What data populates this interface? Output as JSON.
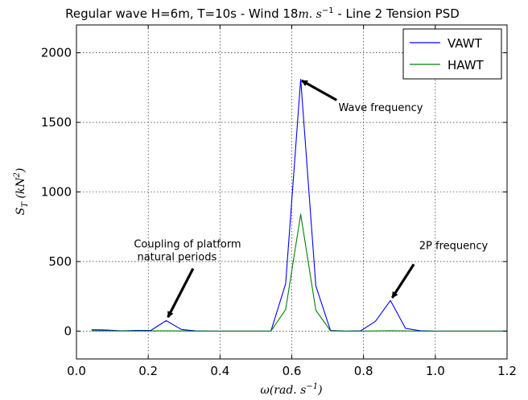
{
  "chart_data": {
    "type": "line",
    "title": "Regular wave H=6m, T=10s - Wind 18",
    "title_unit_math": "m. s",
    "title_unit_exp": "−1",
    "title_suffix": " - Line 2 Tension PSD",
    "xlabel": "ω(rad. s",
    "xlabel_exp": "−1",
    "xlabel_close": ")",
    "ylabel": "S",
    "ylabel_sub": "T",
    "ylabel_unit": " (kN",
    "ylabel_unit_exp": "2",
    "ylabel_close": ")",
    "xlim": [
      0.0,
      1.2
    ],
    "ylim": [
      -200,
      2200
    ],
    "xticks": [
      0.0,
      0.2,
      0.4,
      0.6,
      0.8,
      1.0,
      1.2
    ],
    "xtick_labels": [
      "0.0",
      "0.2",
      "0.4",
      "0.6",
      "0.8",
      "1.0",
      "1.2"
    ],
    "yticks": [
      0,
      500,
      1000,
      1500,
      2000
    ],
    "ytick_labels": [
      "0",
      "500",
      "1000",
      "1500",
      "2000"
    ],
    "grid": true,
    "legend_position": "top-right",
    "series": [
      {
        "name": "VAWT",
        "color": "#0000ff",
        "points": [
          [
            0.042,
            10
          ],
          [
            0.083,
            8
          ],
          [
            0.125,
            2
          ],
          [
            0.167,
            5
          ],
          [
            0.208,
            6
          ],
          [
            0.25,
            75
          ],
          [
            0.292,
            12
          ],
          [
            0.333,
            1
          ],
          [
            0.375,
            0
          ],
          [
            0.417,
            0
          ],
          [
            0.458,
            0
          ],
          [
            0.5,
            0
          ],
          [
            0.542,
            0
          ],
          [
            0.583,
            340
          ],
          [
            0.625,
            1810
          ],
          [
            0.667,
            325
          ],
          [
            0.708,
            5
          ],
          [
            0.75,
            0
          ],
          [
            0.792,
            2
          ],
          [
            0.833,
            70
          ],
          [
            0.875,
            220
          ],
          [
            0.917,
            20
          ],
          [
            0.958,
            3
          ],
          [
            1.0,
            0
          ],
          [
            1.042,
            0
          ],
          [
            1.083,
            0
          ],
          [
            1.125,
            0
          ],
          [
            1.167,
            0
          ],
          [
            1.2,
            0
          ]
        ]
      },
      {
        "name": "HAWT",
        "color": "#008000",
        "points": [
          [
            0.042,
            2
          ],
          [
            0.083,
            2
          ],
          [
            0.125,
            1
          ],
          [
            0.167,
            1
          ],
          [
            0.208,
            1
          ],
          [
            0.25,
            2
          ],
          [
            0.292,
            1
          ],
          [
            0.333,
            0
          ],
          [
            0.375,
            0
          ],
          [
            0.417,
            0
          ],
          [
            0.458,
            0
          ],
          [
            0.5,
            0
          ],
          [
            0.542,
            0
          ],
          [
            0.583,
            155
          ],
          [
            0.625,
            840
          ],
          [
            0.667,
            150
          ],
          [
            0.708,
            2
          ],
          [
            0.75,
            0
          ],
          [
            0.792,
            0
          ],
          [
            0.833,
            1
          ],
          [
            0.875,
            3
          ],
          [
            0.917,
            1
          ],
          [
            0.958,
            0
          ],
          [
            1.0,
            0
          ],
          [
            1.042,
            0
          ],
          [
            1.083,
            0
          ],
          [
            1.125,
            0
          ],
          [
            1.167,
            0
          ],
          [
            1.2,
            0
          ]
        ]
      }
    ],
    "annotations": [
      {
        "lines": [
          "Wave frequency"
        ],
        "text_at": [
          0.73,
          1580
        ],
        "arrow_from": [
          0.725,
          1660
        ],
        "arrow_to": [
          0.628,
          1800
        ]
      },
      {
        "lines": [
          "2P frequency"
        ],
        "text_at": [
          0.955,
          590
        ],
        "arrow_from": [
          0.94,
          480
        ],
        "arrow_to": [
          0.88,
          240
        ]
      },
      {
        "lines": [
          "Coupling of platform",
          " natural periods"
        ],
        "text_at": [
          0.16,
          600
        ],
        "arrow_from": [
          0.325,
          450
        ],
        "arrow_to": [
          0.255,
          100
        ]
      }
    ]
  }
}
